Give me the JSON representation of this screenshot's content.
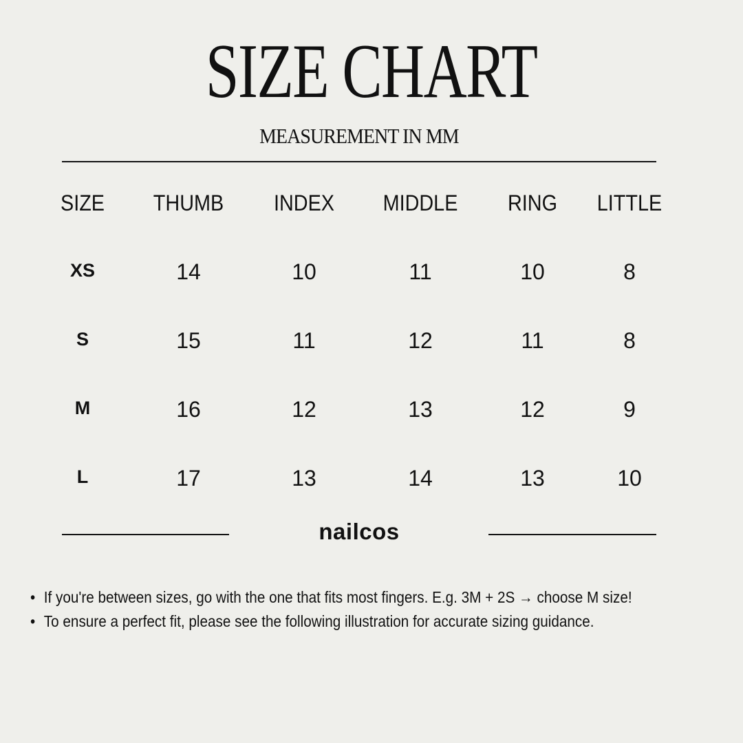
{
  "title": "SIZE CHART",
  "subtitle": "MEASUREMENT IN MM",
  "table": {
    "headers": [
      "SIZE",
      "THUMB",
      "INDEX",
      "MIDDLE",
      "RING",
      "LITTLE"
    ],
    "rows": [
      [
        "XS",
        "14",
        "10",
        "11",
        "10",
        "8"
      ],
      [
        "S",
        "15",
        "11",
        "12",
        "11",
        "8"
      ],
      [
        "M",
        "16",
        "12",
        "13",
        "12",
        "9"
      ],
      [
        "L",
        "17",
        "13",
        "14",
        "13",
        "10"
      ]
    ]
  },
  "brand": "nailcos",
  "notes": [
    "If you're between sizes, go with the one that fits most fingers. E.g. 3M + 2S → choose M size!",
    "To ensure a perfect fit, please see the following illustration for accurate sizing guidance."
  ],
  "colors": {
    "background": "#efefeb",
    "text": "#111111"
  }
}
